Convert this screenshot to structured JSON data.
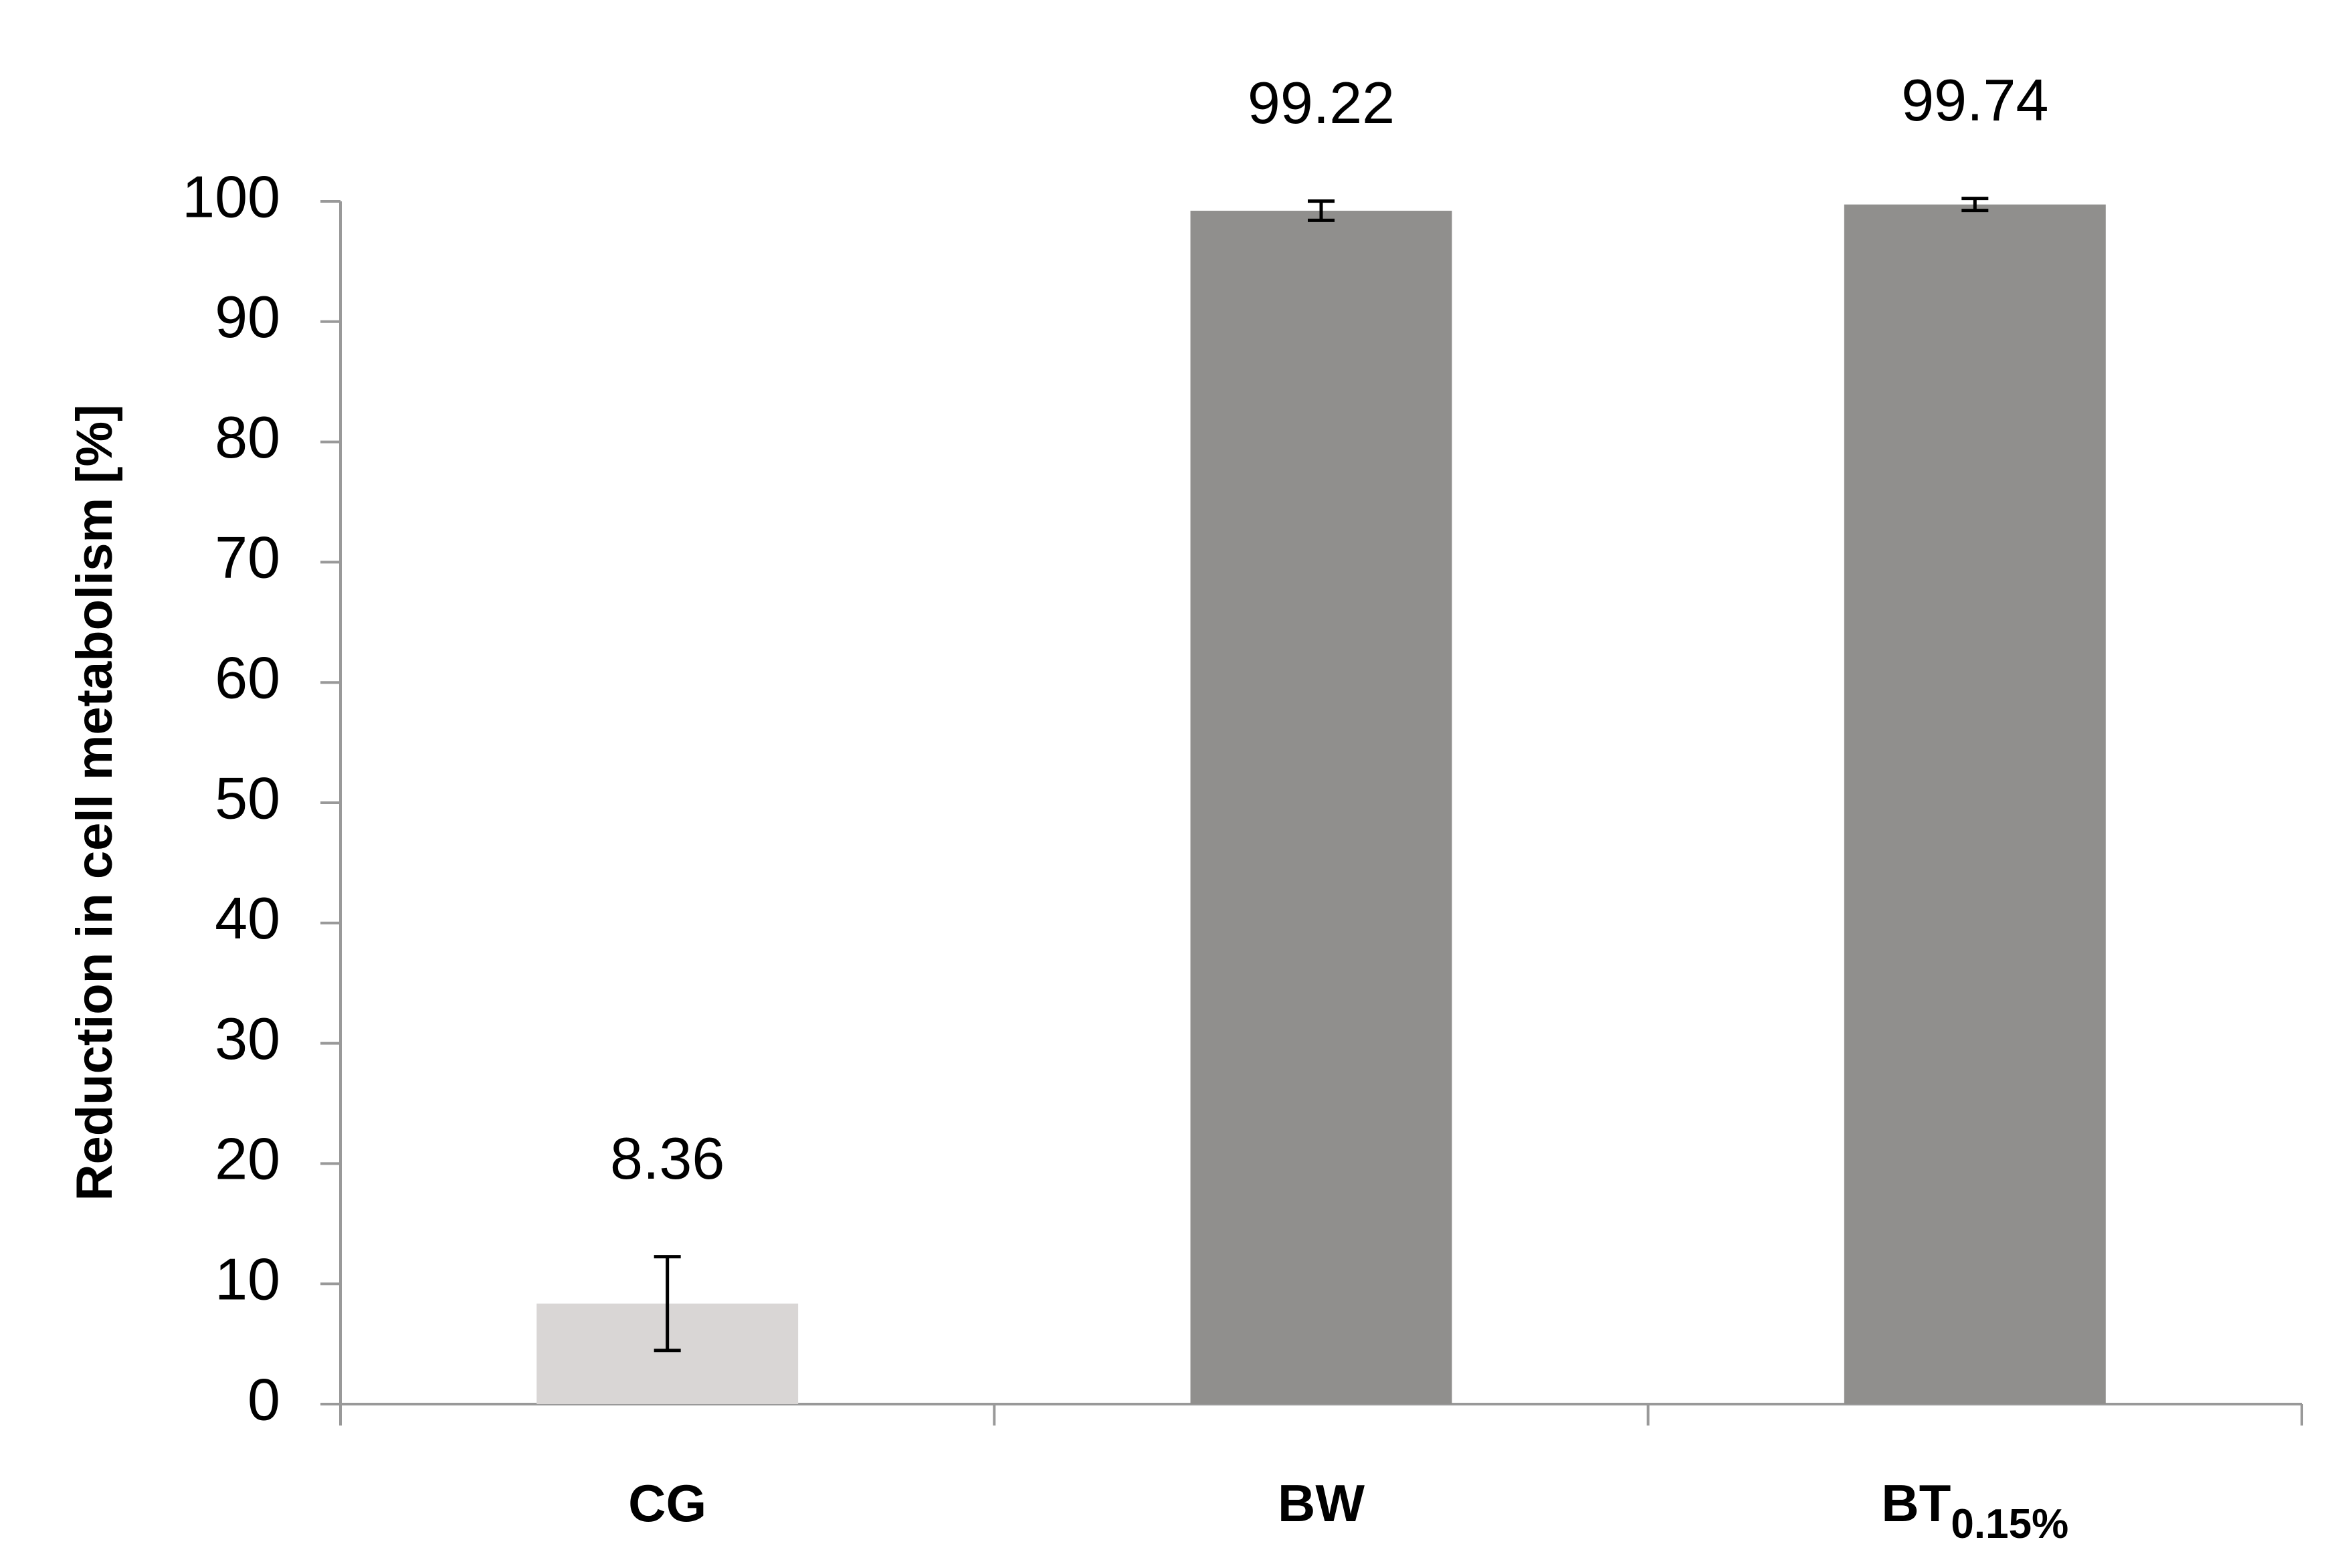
{
  "chart_data": {
    "type": "bar",
    "y_label": "Reduction in cell metabolism [%]",
    "categories": [
      "CG",
      "BW",
      "BT"
    ],
    "category_subscripts": {
      "2": "0.15%"
    },
    "values": [
      8.36,
      99.22,
      99.74
    ],
    "errors": [
      3.9,
      0.8,
      0.5
    ],
    "colors": [
      "#d9d6d5",
      "#908f8d",
      "#908f8d"
    ],
    "ylim": [
      0,
      100
    ],
    "yticks": [
      0,
      10,
      20,
      30,
      40,
      50,
      60,
      70,
      80,
      90,
      100
    ],
    "grid": false
  }
}
